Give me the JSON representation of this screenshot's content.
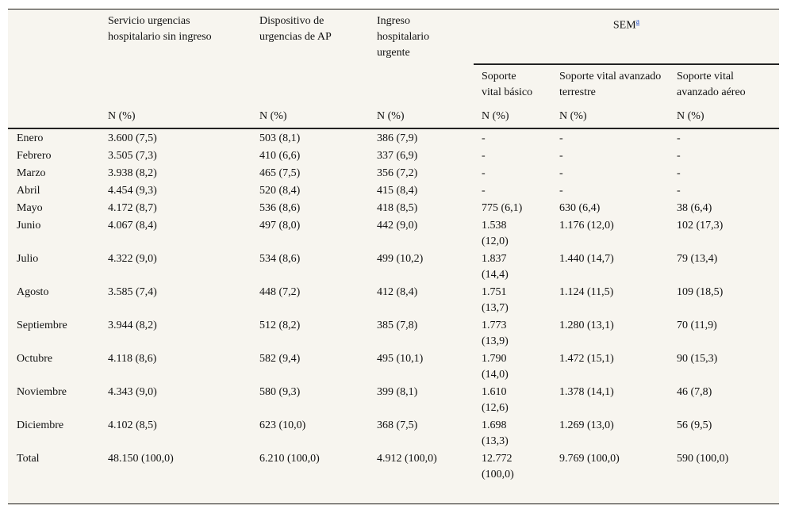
{
  "table": {
    "columns": [
      "Servicio urgencias hospitalario sin ingreso",
      "Dispositivo de urgencias de AP",
      "Ingreso hospitalario urgente"
    ],
    "group": {
      "label": "SEM",
      "note": "a",
      "columns": [
        "Soporte vital básico",
        "Soporte vital avanzado terrestre",
        "Soporte vital avanzado aéreo"
      ]
    },
    "units": [
      "N (%)",
      "N (%)",
      "N (%)",
      "N (%)",
      "N (%)",
      "N (%)"
    ],
    "rows": [
      {
        "label": "Enero",
        "cells": [
          "3.600 (7,5)",
          "503 (8,1)",
          "386 (7,9)",
          "-",
          "-",
          "-"
        ]
      },
      {
        "label": "Febrero",
        "cells": [
          "3.505 (7,3)",
          "410 (6,6)",
          "337 (6,9)",
          "-",
          "-",
          "-"
        ]
      },
      {
        "label": "Marzo",
        "cells": [
          "3.938 (8,2)",
          "465 (7,5)",
          "356 (7,2)",
          "-",
          "-",
          "-"
        ]
      },
      {
        "label": "Abril",
        "cells": [
          "4.454 (9,3)",
          "520 (8,4)",
          "415 (8,4)",
          "-",
          "-",
          "-"
        ]
      },
      {
        "label": "Mayo",
        "cells": [
          "4.172 (8,7)",
          "536 (8,6)",
          "418 (8,5)",
          "775 (6,1)",
          "630 (6,4)",
          "38 (6,4)"
        ]
      },
      {
        "label": "Junio",
        "cells": [
          "4.067 (8,4)",
          "497 (8,0)",
          "442 (9,0)",
          "1.538 (12,0)",
          "1.176 (12,0)",
          "102 (17,3)"
        ]
      },
      {
        "label": "Julio",
        "cells": [
          "4.322 (9,0)",
          "534 (8,6)",
          "499 (10,2)",
          "1.837 (14,4)",
          "1.440 (14,7)",
          "79 (13,4)"
        ]
      },
      {
        "label": "Agosto",
        "cells": [
          "3.585 (7,4)",
          "448 (7,2)",
          "412 (8,4)",
          "1.751 (13,7)",
          "1.124 (11,5)",
          "109 (18,5)"
        ]
      },
      {
        "label": "Septiembre",
        "cells": [
          "3.944 (8,2)",
          "512 (8,2)",
          "385 (7,8)",
          "1.773 (13,9)",
          "1.280 (13,1)",
          "70 (11,9)"
        ]
      },
      {
        "label": "Octubre",
        "cells": [
          "4.118 (8,6)",
          "582 (9,4)",
          "495 (10,1)",
          "1.790 (14,0)",
          "1.472 (15,1)",
          "90 (15,3)"
        ]
      },
      {
        "label": "Noviembre",
        "cells": [
          "4.343 (9,0)",
          "580 (9,3)",
          "399 (8,1)",
          "1.610 (12,6)",
          "1.378 (14,1)",
          "46 (7,8)"
        ]
      },
      {
        "label": "Diciembre",
        "cells": [
          "4.102 (8,5)",
          "623 (10,0)",
          "368 (7,5)",
          "1.698 (13,3)",
          "1.269 (13,0)",
          "56 (9,5)"
        ]
      },
      {
        "label": "Total",
        "cells": [
          "48.150 (100,0)",
          "6.210 (100,0)",
          "4.912 (100,0)",
          "12.772 (100,0)",
          "9.769 (100,0)",
          "590 (100,0)"
        ]
      }
    ]
  }
}
